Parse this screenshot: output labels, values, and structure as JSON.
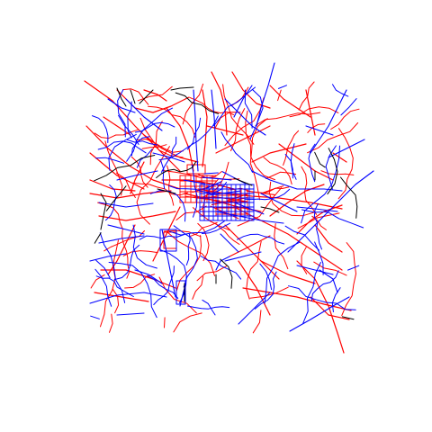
{
  "map": {
    "kind": "road-network-plot",
    "background_color": "#ffffff",
    "series": [
      {
        "key": "red",
        "color": "#ff0000"
      },
      {
        "key": "blue",
        "color": "#0000ff"
      },
      {
        "key": "black",
        "color": "#000000"
      }
    ],
    "labels": []
  }
}
